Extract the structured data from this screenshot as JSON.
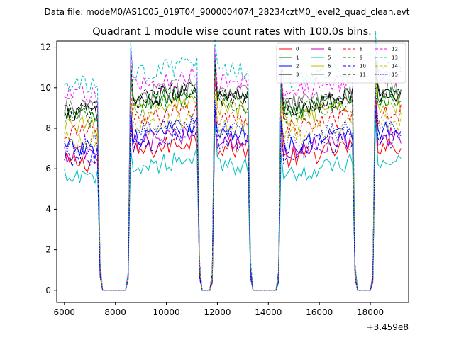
{
  "chart_data": {
    "type": "line",
    "suptitle": "Data file: modeM0/AS1C05_019T04_9000004074_28234cztM0_level2_quad_clean.evt",
    "title": "Quadrant 1 module wise count rates with 100.0s bins.",
    "x_offset_label": "+3.459e8",
    "xlim": [
      5700,
      19500
    ],
    "ylim": [
      -0.6,
      12.3
    ],
    "x_ticks": [
      6000,
      8000,
      10000,
      12000,
      14000,
      16000,
      18000
    ],
    "x_tick_labels": [
      "6000",
      "8000",
      "10000",
      "12000",
      "14000",
      "16000",
      "18000"
    ],
    "y_ticks": [
      0,
      2,
      4,
      6,
      8,
      10,
      12
    ],
    "y_tick_labels": [
      "0",
      "2",
      "4",
      "6",
      "8",
      "10",
      "12"
    ],
    "grid": false,
    "legend_location": "upper-right",
    "x_start": 6000,
    "bin_width": 100,
    "on_segments": [
      [
        6000,
        7300
      ],
      [
        8600,
        11200
      ],
      [
        11900,
        13200
      ],
      [
        14500,
        17300
      ],
      [
        18200,
        19200
      ]
    ],
    "series": [
      {
        "name": "0",
        "color": "#ff0000",
        "dash": "solid",
        "level": 6.3
      },
      {
        "name": "1",
        "color": "#008000",
        "dash": "solid",
        "level": 8.7
      },
      {
        "name": "2",
        "color": "#0000ff",
        "dash": "solid",
        "level": 7.0
      },
      {
        "name": "3",
        "color": "#000000",
        "dash": "solid",
        "level": 8.8
      },
      {
        "name": "4",
        "color": "#bf00bf",
        "dash": "solid",
        "level": 6.7
      },
      {
        "name": "5",
        "color": "#00bfbf",
        "dash": "solid",
        "level": 5.5
      },
      {
        "name": "6",
        "color": "#bfbf00",
        "dash": "solid",
        "level": 8.2
      },
      {
        "name": "7",
        "color": "#808080",
        "dash": "solid",
        "level": 9.0
      },
      {
        "name": "8",
        "color": "#ff0000",
        "dash": "dashed",
        "level": 7.8
      },
      {
        "name": "9",
        "color": "#008000",
        "dash": "dashed",
        "level": 8.5
      },
      {
        "name": "10",
        "color": "#0000ff",
        "dash": "dashed",
        "level": 6.6
      },
      {
        "name": "11",
        "color": "#000000",
        "dash": "dashed",
        "level": 8.9
      },
      {
        "name": "12",
        "color": "#ff00ff",
        "dash": "dashed",
        "level": 9.6
      },
      {
        "name": "13",
        "color": "#00bfbf",
        "dash": "dashed",
        "level": 10.1
      },
      {
        "name": "14",
        "color": "#bfbf00",
        "dash": "dashed",
        "level": 7.4
      },
      {
        "name": "15",
        "color": "#0000ff",
        "dash": "dotted",
        "level": 7.2
      }
    ]
  }
}
